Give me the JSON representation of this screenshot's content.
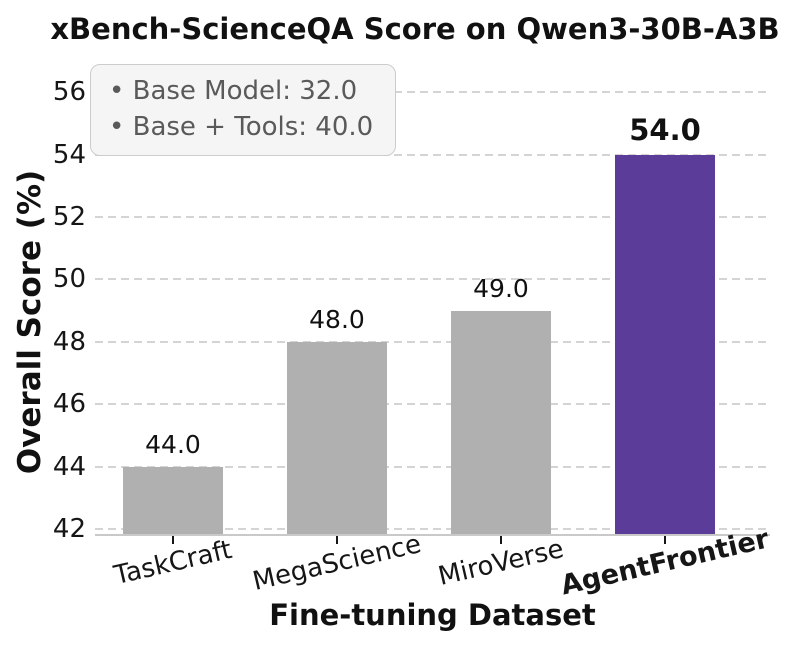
{
  "title": "xBench-ScienceQA Score on Qwen3-30B-A3B",
  "annotation": {
    "line1": "• Base Model: 32.0",
    "line2": "• Base + Tools: 40.0"
  },
  "chart_data": {
    "type": "bar",
    "title": "xBench-ScienceQA Score on Qwen3-30B-A3B",
    "xlabel": "Fine-tuning Dataset",
    "ylabel": "Overall Score (%)",
    "categories": [
      "TaskCraft",
      "MegaScience",
      "MiroVerse",
      "AgentFrontier"
    ],
    "values": [
      44.0,
      48.0,
      49.0,
      54.0
    ],
    "value_labels": [
      "44.0",
      "48.0",
      "49.0",
      "54.0"
    ],
    "bar_colors": [
      "#b0b0b0",
      "#b0b0b0",
      "#b0b0b0",
      "#5c3c99"
    ],
    "highlight_index": 3,
    "ylim": [
      42,
      56
    ],
    "yticks": [
      42,
      44,
      46,
      48,
      50,
      52,
      54,
      56
    ],
    "grid": "horizontal-dashed",
    "legend_position": "none",
    "annotations": [
      "Base Model: 32.0",
      "Base + Tools: 40.0"
    ]
  },
  "colors": {
    "bar_gray": "#b0b0b0",
    "bar_highlight": "#5c3c99",
    "gridline": "#d4d4d4",
    "axis_spine": "#c9c9c9",
    "annotation_text": "#5a5a5a",
    "annotation_bg": "#f5f5f5",
    "annotation_border": "#cccccc",
    "text": "#111111"
  }
}
